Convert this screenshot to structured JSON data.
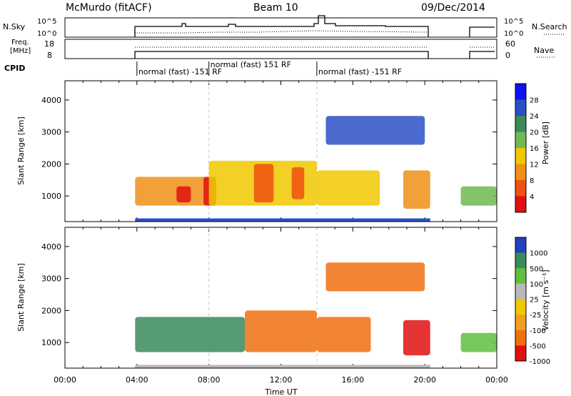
{
  "header": {
    "station": "McMurdo (fitACF)",
    "beam": "Beam 10",
    "date": "09/Dec/2014"
  },
  "strips": {
    "nsky_label": "N.Sky",
    "nsky_ticks": [
      "10^5",
      "10^0"
    ],
    "nsearch_label": "N.Search",
    "nsearch_ticks": [
      "10^5",
      "10^0"
    ],
    "freq_label_line1": "Freq.",
    "freq_label_line2": "[MHz]",
    "freq_ticks": [
      "18",
      "8"
    ],
    "nave_label": "Nave",
    "nave_ticks": [
      "60",
      "0"
    ],
    "cpid_label": "CPID",
    "cpid_segments": [
      {
        "label": "normal (fast) -151 RF",
        "start_h": 4.0,
        "end_h": 8.0
      },
      {
        "label": "normal (fast) 151 RF",
        "start_h": 8.0,
        "end_h": 14.0
      },
      {
        "label": "normal (fast) -151 RF",
        "start_h": 14.0,
        "end_h": 20.3
      }
    ]
  },
  "colorbars": {
    "power": {
      "label": "Power [dB]",
      "ticks": [
        "4",
        "8",
        "12",
        "16",
        "20",
        "24",
        "28"
      ],
      "colors": [
        "#1010f0",
        "#2a50c8",
        "#3a8a5a",
        "#70b850",
        "#f0c800",
        "#f09018",
        "#f05010",
        "#e01010"
      ]
    },
    "velocity": {
      "label": "Velocity [m s⁻¹]",
      "ticks": [
        "1000",
        "500",
        "100",
        "25",
        "-25",
        "-100",
        "-500",
        "-1000"
      ],
      "colors": [
        "#2040c0",
        "#3a8a5a",
        "#60c040",
        "#b8b8b8",
        "#f0c800",
        "#f0a020",
        "#f07010",
        "#e01010"
      ]
    }
  },
  "chart_data": [
    {
      "type": "heatmap",
      "panel": "power",
      "ylabel": "Slant Range [km]",
      "xlabel": "",
      "xlim_h": [
        0,
        24
      ],
      "ylim": [
        200,
        4600
      ],
      "yticks": [
        "1000",
        "2000",
        "3000",
        "4000"
      ],
      "grid": false,
      "patches": [
        {
          "x0": 3.9,
          "x1": 8.0,
          "y0": 700,
          "y1": 1600,
          "level": 5
        },
        {
          "x0": 6.2,
          "x1": 7.0,
          "y0": 800,
          "y1": 1300,
          "level": 7
        },
        {
          "x0": 7.7,
          "x1": 8.4,
          "y0": 700,
          "y1": 1600,
          "level": 7
        },
        {
          "x0": 8.0,
          "x1": 14.0,
          "y0": 700,
          "y1": 2100,
          "level": 4
        },
        {
          "x0": 10.5,
          "x1": 11.6,
          "y0": 800,
          "y1": 2000,
          "level": 6
        },
        {
          "x0": 12.6,
          "x1": 13.3,
          "y0": 900,
          "y1": 1900,
          "level": 6
        },
        {
          "x0": 14.0,
          "x1": 17.5,
          "y0": 700,
          "y1": 1800,
          "level": 4
        },
        {
          "x0": 18.8,
          "x1": 20.3,
          "y0": 600,
          "y1": 1800,
          "level": 5
        },
        {
          "x0": 22.0,
          "x1": 24.0,
          "y0": 700,
          "y1": 1300,
          "level": 3
        },
        {
          "x0": 14.5,
          "x1": 20.0,
          "y0": 2600,
          "y1": 3500,
          "level": 1
        }
      ]
    },
    {
      "type": "heatmap",
      "panel": "velocity",
      "ylabel": "Slant Range [km]",
      "xlabel": "Time UT",
      "xlim_h": [
        0,
        24
      ],
      "ylim": [
        200,
        4600
      ],
      "yticks": [
        "1000",
        "2000",
        "3000",
        "4000"
      ],
      "xticks": [
        "00:00",
        "04:00",
        "08:00",
        "12:00",
        "16:00",
        "20:00",
        "00:00"
      ],
      "grid": false,
      "patches": [
        {
          "x0": 3.9,
          "x1": 10.0,
          "y0": 700,
          "y1": 1800,
          "level": 1
        },
        {
          "x0": 10.0,
          "x1": 14.0,
          "y0": 700,
          "y1": 2000,
          "level": 6
        },
        {
          "x0": 14.0,
          "x1": 17.0,
          "y0": 700,
          "y1": 1800,
          "level": 6
        },
        {
          "x0": 18.8,
          "x1": 20.3,
          "y0": 600,
          "y1": 1700,
          "level": 7
        },
        {
          "x0": 22.0,
          "x1": 24.0,
          "y0": 700,
          "y1": 1300,
          "level": 2
        },
        {
          "x0": 14.5,
          "x1": 20.0,
          "y0": 2600,
          "y1": 3500,
          "level": 6
        }
      ]
    }
  ]
}
